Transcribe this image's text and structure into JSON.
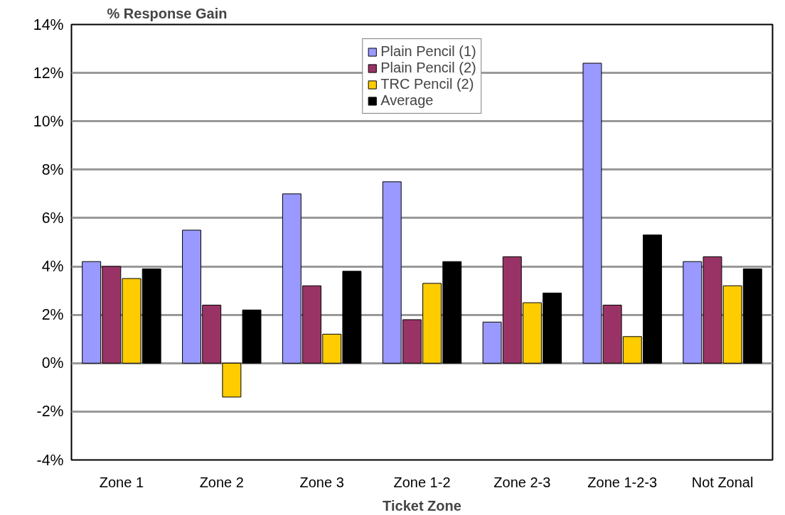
{
  "chart_data": {
    "type": "bar",
    "ylabel": "% Response Gain",
    "xlabel": "Ticket Zone",
    "categories": [
      "Zone 1",
      "Zone 2",
      "Zone 3",
      "Zone 1-2",
      "Zone 2-3",
      "Zone 1-2-3",
      "Not Zonal"
    ],
    "series": [
      {
        "name": "Plain Pencil (1)",
        "color": "#9999ff",
        "values": [
          4.2,
          5.5,
          7.0,
          7.5,
          1.7,
          12.4,
          4.2
        ]
      },
      {
        "name": "Plain Pencil (2)",
        "color": "#993366",
        "values": [
          4.0,
          2.4,
          3.2,
          1.8,
          4.4,
          2.4,
          4.4
        ]
      },
      {
        "name": "TRC Pencil (2)",
        "color": "#ffcc00",
        "values": [
          3.5,
          -1.4,
          1.2,
          3.3,
          2.5,
          1.1,
          3.2
        ]
      },
      {
        "name": "Average",
        "color": "#000000",
        "values": [
          3.9,
          2.2,
          3.8,
          4.2,
          2.9,
          5.3,
          3.9
        ]
      }
    ],
    "ylim": [
      -4,
      14
    ],
    "yticks": [
      {
        "value": -4,
        "label": "-4%"
      },
      {
        "value": -2,
        "label": "-2%"
      },
      {
        "value": 0,
        "label": "0%"
      },
      {
        "value": 2,
        "label": "2%"
      },
      {
        "value": 4,
        "label": "4%"
      },
      {
        "value": 6,
        "label": "6%"
      },
      {
        "value": 8,
        "label": "8%"
      },
      {
        "value": 10,
        "label": "10%"
      },
      {
        "value": 12,
        "label": "12%"
      },
      {
        "value": 14,
        "label": "14%"
      }
    ],
    "grid": "y",
    "legend": "top"
  }
}
